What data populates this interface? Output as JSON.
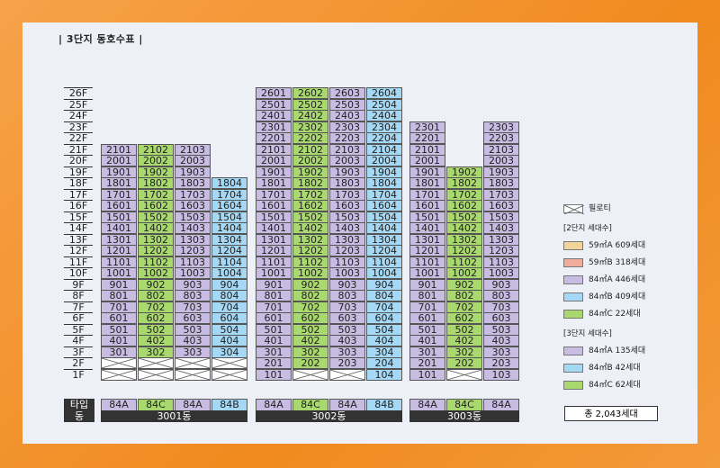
{
  "title": "| 3단지 동호수표 |",
  "floors": [
    "26F",
    "25F",
    "24F",
    "23F",
    "22F",
    "21F",
    "20F",
    "19F",
    "18F",
    "17F",
    "16F",
    "15F",
    "14F",
    "13F",
    "12F",
    "11F",
    "10F",
    "9F",
    "8F",
    "7F",
    "6F",
    "5F",
    "4F",
    "3F",
    "2F",
    "1F"
  ],
  "row_labels": {
    "type": "타입",
    "building": "동"
  },
  "buildings": [
    {
      "name": "3001동",
      "columns": [
        {
          "type": "84A",
          "color": "purple",
          "top_floor": 21,
          "pilotis_floors": [
            1,
            2
          ]
        },
        {
          "type": "84C",
          "color": "green",
          "top_floor": 21,
          "pilotis_floors": [
            1,
            2
          ]
        },
        {
          "type": "84A",
          "color": "purple",
          "top_floor": 21,
          "pilotis_floors": [
            1,
            2
          ]
        },
        {
          "type": "84B",
          "color": "blue",
          "top_floor": 18,
          "pilotis_floors": [
            1,
            2
          ]
        }
      ]
    },
    {
      "name": "3002동",
      "columns": [
        {
          "type": "84A",
          "color": "purple",
          "top_floor": 26,
          "pilotis_floors": []
        },
        {
          "type": "84C",
          "color": "green",
          "top_floor": 26,
          "pilotis_floors": [
            1
          ]
        },
        {
          "type": "84A",
          "color": "purple",
          "top_floor": 26,
          "pilotis_floors": [
            1
          ]
        },
        {
          "type": "84B",
          "color": "blue",
          "top_floor": 26,
          "pilotis_floors": []
        }
      ]
    },
    {
      "name": "3003동",
      "columns": [
        {
          "type": "84A",
          "color": "purple",
          "top_floor": 23,
          "pilotis_floors": []
        },
        {
          "type": "84C",
          "color": "green",
          "top_floor": 19,
          "pilotis_floors": [
            1
          ]
        },
        {
          "type": "84A",
          "color": "purple",
          "top_floor": 23,
          "pilotis_floors": []
        }
      ]
    }
  ],
  "legend": {
    "pilotis_label": "필로티",
    "group2_title": "2단지 세대수",
    "group2": [
      {
        "label": "59㎡A  609세대",
        "color": "#f2d39a"
      },
      {
        "label": "59㎡B  318세대",
        "color": "#f0ae9a"
      },
      {
        "label": "84㎡A  446세대",
        "color": "#c9bce3"
      },
      {
        "label": "84㎡B  409세대",
        "color": "#a4d8f4"
      },
      {
        "label": "84㎡C  22세대",
        "color": "#a8d86e"
      }
    ],
    "group3_title": "3단지 세대수",
    "group3": [
      {
        "label": "84㎡A  135세대",
        "color": "#c9bce3"
      },
      {
        "label": "84㎡B  42세대",
        "color": "#a4d8f4"
      },
      {
        "label": "84㎡C  62세대",
        "color": "#a8d86e"
      }
    ]
  },
  "total": "총 2,043세대"
}
